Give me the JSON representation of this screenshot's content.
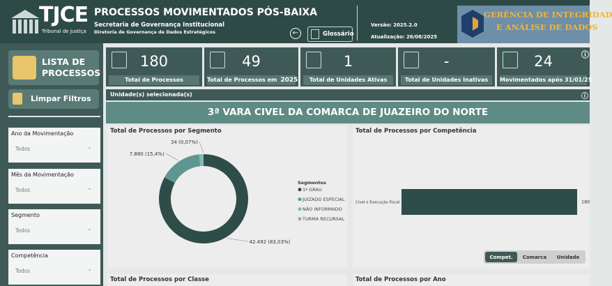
{
  "header": {
    "logo": "TJCE",
    "logo_subtitle": "Tribunal de Justiça",
    "title": "PROCESSOS MOVIMENTADOS PÓS-BAIXA",
    "org": "Secretaria de Governança Institucional",
    "dept": "Diretoria de Governança de Dados Estratégicos",
    "glossary": "Glossário",
    "version": "Versão: 2025.2.0",
    "updated": "Atualização: 26/08/2025",
    "brand_line1": "GERÊNCIA DE INTEGRIDAD",
    "brand_line2": "E ANÁLISE DE DADOS"
  },
  "sidebar": {
    "list_button": [
      "LISTA DE",
      "PROCESSOS"
    ],
    "clear_filters": "Limpar Filtros",
    "filters": [
      {
        "label": "Ano da Movimentação",
        "value": "Todos"
      },
      {
        "label": "Mês da Movimentação",
        "value": "Todos"
      },
      {
        "label": "Segmento",
        "value": "Todos"
      },
      {
        "label": "Competência",
        "value": "Todos"
      }
    ]
  },
  "kpis": [
    {
      "value": 180,
      "label": "Total de Processos"
    },
    {
      "value": 49,
      "label": "Total de Processos em",
      "year": 2025
    },
    {
      "value": 1,
      "label": "Total de Unidades Ativas"
    },
    {
      "value": "-",
      "label": "Total de Unidades Inativas"
    },
    {
      "value": 24,
      "label": "Movimentados após 31/01/25"
    }
  ],
  "selection_label": "Unidade(s) selecionada(s)",
  "unit": "3ª VARA CIVEL DA COMARCA DE JUAZEIRO DO NORTE",
  "chart_data": [
    {
      "type": "donut",
      "title": "Total de Processos por Segmento",
      "legend_title": "Segmentos",
      "categories": [
        "1º GRAU",
        "JUIZADO ESPECIAL",
        "NÃO INFORMADO",
        "TURMA RECURSAL"
      ],
      "values": [
        42492,
        7880,
        771,
        34
      ],
      "value_labels": [
        "42.492 (83,03%)",
        "7.880 (15,4%)",
        null,
        "34 (0,07%)"
      ],
      "colors": [
        "#2f4d48",
        "#5e9692",
        "#7fbab5",
        "#9cae8c"
      ]
    },
    {
      "type": "hbar",
      "title": "Total de Processos por Competência",
      "categories": [
        "Cível e Execução Fiscal"
      ],
      "values": [
        180
      ],
      "color": "#2f4d48",
      "toggles": [
        "Compet.",
        "Comarca",
        "Unidade"
      ]
    }
  ],
  "bottom_panels": [
    "Total de Processos por Classe",
    "Total de Processos por Ano"
  ]
}
